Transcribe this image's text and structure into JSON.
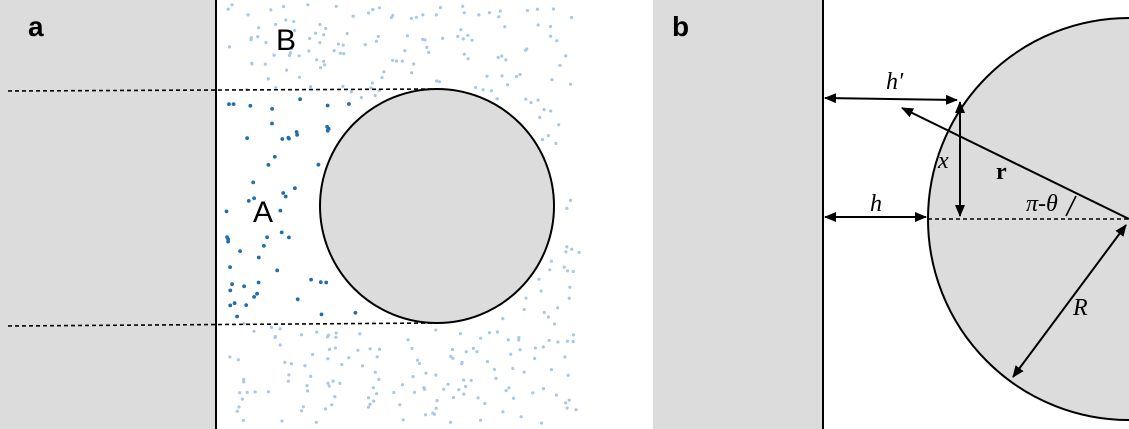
{
  "panel_a": {
    "label": "a",
    "region_a_label": "A",
    "region_b_label": "B"
  },
  "panel_b": {
    "label": "b",
    "h_prime_label": "h′",
    "h_label": "h",
    "x_label": "x",
    "r_label": "r",
    "angle_label": "π-θ",
    "R_label": "R"
  },
  "colors": {
    "solid_fill": "#dcdcdc",
    "line": "#000000",
    "dense_dots": "#1f6fb0",
    "sparse_dots": "#a9c8e6"
  }
}
